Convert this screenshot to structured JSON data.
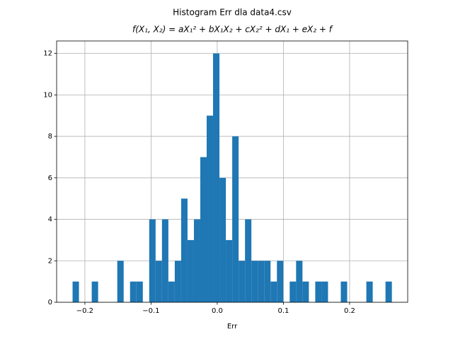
{
  "chart_data": {
    "type": "histogram",
    "title": "Histogram Err dla data4.csv",
    "subtitle": "f(X₁, X₂) = aX₁² + bX₁X₂ + cX₂² + dX₁ + eX₂ + f",
    "xlabel": "Err",
    "color": "#1f77b4",
    "grid": true,
    "bins": [
      -0.2186,
      -0.20895,
      -0.1993,
      -0.18965,
      -0.18,
      -0.17035,
      -0.1607,
      -0.15105,
      -0.1414,
      -0.13175,
      -0.1221,
      -0.11245,
      -0.1028,
      -0.09315,
      -0.0835,
      -0.07385,
      -0.0642,
      -0.05455,
      -0.0449,
      -0.03525,
      -0.0256,
      -0.01595,
      -0.0063,
      0.00335,
      0.013,
      0.02265,
      0.0323,
      0.04195,
      0.0516,
      0.06125,
      0.0709,
      0.08055,
      0.0902,
      0.09985,
      0.1095,
      0.11915,
      0.1288,
      0.13845,
      0.1481,
      0.15775,
      0.1674,
      0.17705,
      0.1867,
      0.19635,
      0.206,
      0.21565,
      0.2253,
      0.23495,
      0.2446,
      0.25425,
      0.2639
    ],
    "values": [
      1,
      0,
      0,
      1,
      0,
      0,
      0,
      2,
      0,
      1,
      1,
      0,
      4,
      2,
      4,
      1,
      2,
      5,
      3,
      4,
      7,
      9,
      12,
      6,
      3,
      8,
      2,
      4,
      2,
      2,
      2,
      1,
      2,
      0,
      1,
      2,
      1,
      0,
      1,
      1,
      0,
      0,
      1,
      0,
      0,
      0,
      1,
      0,
      0,
      1
    ],
    "xlim": [
      -0.2427,
      0.2878
    ],
    "ylim": [
      0,
      12.6
    ],
    "xticks": [
      {
        "value": -0.2,
        "label": "−0.2"
      },
      {
        "value": -0.1,
        "label": "−0.1"
      },
      {
        "value": 0,
        "label": "0.0"
      },
      {
        "value": 0.1,
        "label": "0.1"
      },
      {
        "value": 0.2,
        "label": "0.2"
      }
    ],
    "yticks": [
      0,
      2,
      4,
      6,
      8,
      10,
      12
    ]
  }
}
